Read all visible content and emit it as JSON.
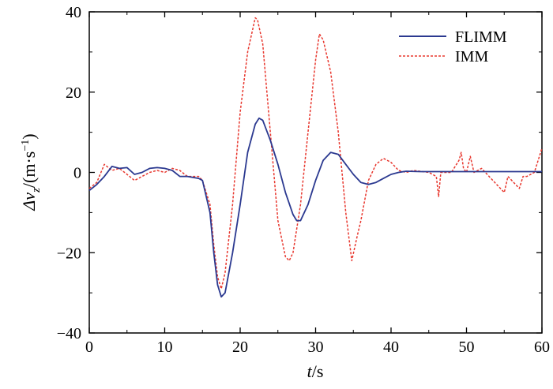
{
  "chart_data": {
    "type": "line",
    "title": "",
    "xlabel": {
      "var": "t",
      "unit": "/s"
    },
    "ylabel": {
      "var": "Δv",
      "sub": "z",
      "unit": "/(m·s",
      "exp": "−1",
      "close": ")"
    },
    "xlim": [
      0,
      60
    ],
    "ylim": [
      -40,
      40
    ],
    "xticks": [
      0,
      10,
      20,
      30,
      40,
      50,
      60
    ],
    "yticks": [
      -40,
      -20,
      0,
      20,
      40
    ],
    "ytick_labels": [
      "−40",
      "−20",
      "0",
      "20",
      "40"
    ],
    "grid": false,
    "legend_position": "top-right",
    "series": [
      {
        "name": "FLIMM",
        "color": "#2b3990",
        "style": "solid",
        "points": [
          [
            0,
            -4.5
          ],
          [
            1,
            -3
          ],
          [
            2,
            -1
          ],
          [
            3,
            1.5
          ],
          [
            4,
            1
          ],
          [
            5,
            1.2
          ],
          [
            6,
            -0.5
          ],
          [
            7,
            0
          ],
          [
            8,
            1
          ],
          [
            9,
            1.2
          ],
          [
            10,
            1
          ],
          [
            11,
            0.5
          ],
          [
            12,
            -1
          ],
          [
            13,
            -1
          ],
          [
            14.5,
            -1.5
          ],
          [
            15,
            -2
          ],
          [
            16,
            -10
          ],
          [
            16.5,
            -20
          ],
          [
            17,
            -28
          ],
          [
            17.5,
            -31
          ],
          [
            18,
            -30
          ],
          [
            19,
            -20
          ],
          [
            20,
            -8
          ],
          [
            21,
            5
          ],
          [
            22,
            12
          ],
          [
            22.5,
            13.5
          ],
          [
            23,
            13
          ],
          [
            24,
            8
          ],
          [
            25,
            2
          ],
          [
            26,
            -5
          ],
          [
            27,
            -10.5
          ],
          [
            27.5,
            -12
          ],
          [
            28,
            -12
          ],
          [
            29,
            -8
          ],
          [
            30,
            -2
          ],
          [
            31,
            3
          ],
          [
            32,
            5
          ],
          [
            33,
            4.5
          ],
          [
            34,
            2
          ],
          [
            35,
            -0.5
          ],
          [
            36,
            -2.5
          ],
          [
            37,
            -3
          ],
          [
            38,
            -2.5
          ],
          [
            39,
            -1.5
          ],
          [
            40,
            -0.5
          ],
          [
            41,
            0
          ],
          [
            42,
            0.3
          ],
          [
            44,
            0.2
          ],
          [
            46,
            0.2
          ],
          [
            50,
            0.2
          ],
          [
            55,
            0.2
          ],
          [
            60,
            0.2
          ]
        ]
      },
      {
        "name": "IMM",
        "color": "#e8382f",
        "style": "dotted",
        "points": [
          [
            0,
            -4
          ],
          [
            1,
            -2.5
          ],
          [
            2,
            2
          ],
          [
            3,
            0.5
          ],
          [
            4,
            1
          ],
          [
            5,
            -0.5
          ],
          [
            6,
            -2
          ],
          [
            7,
            -1
          ],
          [
            8,
            0
          ],
          [
            9,
            0.5
          ],
          [
            10,
            0
          ],
          [
            11,
            1
          ],
          [
            12,
            0.5
          ],
          [
            13,
            -1
          ],
          [
            14.5,
            -1
          ],
          [
            15,
            -2
          ],
          [
            16,
            -8
          ],
          [
            16.5,
            -18
          ],
          [
            17,
            -26
          ],
          [
            17.5,
            -29
          ],
          [
            18,
            -25
          ],
          [
            19,
            -8
          ],
          [
            20,
            15
          ],
          [
            21,
            30
          ],
          [
            22,
            38.5
          ],
          [
            22.3,
            38
          ],
          [
            23,
            32
          ],
          [
            24,
            10
          ],
          [
            25,
            -12
          ],
          [
            26,
            -21
          ],
          [
            26.5,
            -22
          ],
          [
            27,
            -20
          ],
          [
            28,
            -8
          ],
          [
            29,
            10
          ],
          [
            30,
            28
          ],
          [
            30.5,
            34.5
          ],
          [
            31,
            33
          ],
          [
            32,
            25
          ],
          [
            33,
            10
          ],
          [
            34,
            -10
          ],
          [
            34.8,
            -22
          ],
          [
            35.5,
            -16
          ],
          [
            36,
            -12
          ],
          [
            37,
            -2
          ],
          [
            38,
            2
          ],
          [
            39,
            3.5
          ],
          [
            40,
            2.5
          ],
          [
            41,
            0.5
          ],
          [
            42,
            0
          ],
          [
            43,
            0.5
          ],
          [
            45,
            0
          ],
          [
            46,
            -1
          ],
          [
            46.3,
            -6
          ],
          [
            46.6,
            0
          ],
          [
            48,
            0
          ],
          [
            49,
            3
          ],
          [
            49.3,
            5
          ],
          [
            49.6,
            1
          ],
          [
            50,
            0
          ],
          [
            50.5,
            4
          ],
          [
            51,
            0
          ],
          [
            52,
            1
          ],
          [
            53,
            -1
          ],
          [
            54,
            -3
          ],
          [
            55,
            -5
          ],
          [
            55.5,
            -1
          ],
          [
            56,
            -2
          ],
          [
            57,
            -4
          ],
          [
            57.5,
            -1
          ],
          [
            58,
            -1
          ],
          [
            59,
            0
          ],
          [
            59.5,
            3
          ],
          [
            60,
            6
          ]
        ]
      }
    ]
  }
}
